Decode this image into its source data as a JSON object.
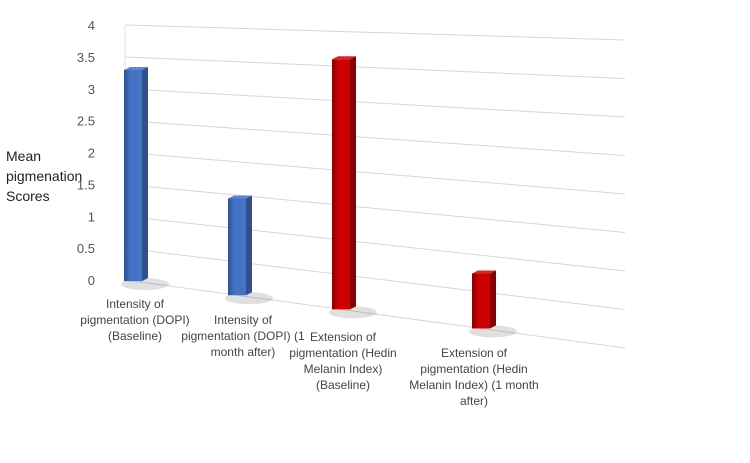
{
  "chart_data": {
    "type": "bar",
    "title": "",
    "xlabel": "",
    "ylabel_lines": [
      "Mean",
      "pigmenation",
      "Scores"
    ],
    "ylim": [
      0,
      4
    ],
    "yticks": [
      "0",
      "0.5",
      "1",
      "1.5",
      "2",
      "2.5",
      "3",
      "3.5",
      "4"
    ],
    "grid": true,
    "legend": "none",
    "categories": [
      [
        "Intensity of",
        "pigmentation (DOPI)",
        "(Baseline)"
      ],
      [
        "Intensity of",
        "pigmentation (DOPI) (1",
        "month after)"
      ],
      [
        "Extension of",
        "pigmentation (Hedin",
        "Melanin Index)",
        "(Baseline)"
      ],
      [
        "Extension of",
        "pigmentation (Hedin",
        "Melanin Index) (1 month",
        "after)"
      ]
    ],
    "values": [
      3.3,
      1.45,
      3.6,
      0.75
    ],
    "colors": [
      "#4472c4",
      "#4472c4",
      "#cc0000",
      "#cc0000"
    ],
    "shadow_colors": [
      "#2f528f",
      "#2f528f",
      "#8a0000",
      "#8a0000"
    ]
  }
}
